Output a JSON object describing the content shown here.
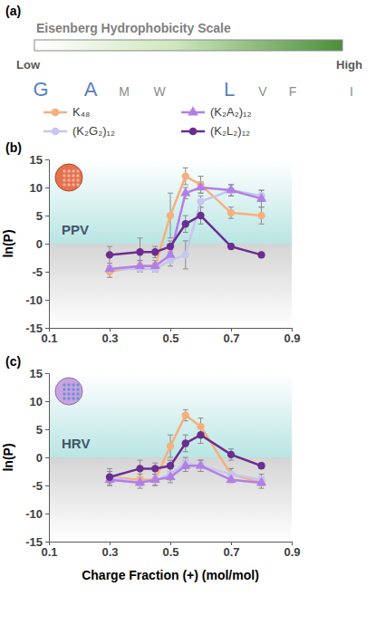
{
  "chart_data": [
    {
      "type": "scale",
      "panel": "(a)",
      "title": "Eisenberg Hydrophobicity Scale",
      "low_label": "Low",
      "high_label": "High",
      "letters": [
        "G",
        "A",
        "M",
        "W",
        "L",
        "V",
        "F",
        "I"
      ],
      "colors": [
        "#5b80bf",
        "#5b80bf",
        "#8c8c8c",
        "#8c8c8c",
        "#5b80bf",
        "#8c8c8c",
        "#8c8c8c",
        "#8c8c8c"
      ]
    },
    {
      "type": "line",
      "panel": "(b)",
      "annotation": "PPV",
      "ylabel": "ln(P)",
      "legend": "top",
      "x": [
        0.3,
        0.4,
        0.45,
        0.5,
        0.55,
        0.6,
        0.7,
        0.8
      ],
      "xlim": [
        0.1,
        0.9
      ],
      "xticks": [
        0.1,
        0.3,
        0.5,
        0.7,
        0.9
      ],
      "ylim": [
        -15,
        15
      ],
      "yticks": [
        -15,
        -10,
        -5,
        0,
        5,
        10,
        15
      ],
      "series": [
        {
          "name": "K₄₈",
          "color": "#f5b07c",
          "marker": "circle",
          "line_style": "solid",
          "values": [
            -5,
            -4,
            -4,
            5,
            12,
            10.5,
            5.5,
            5
          ],
          "errors": [
            1,
            1,
            1,
            4,
            1.5,
            1.5,
            1,
            1.5
          ]
        },
        {
          "name": "(K₂G₂)₁₂",
          "color": "#c6c6ee",
          "marker": "circle",
          "line_style": "solid",
          "values": [
            -4.5,
            -4.5,
            -4.5,
            -3,
            -2,
            7.5,
            9.5,
            8.5
          ],
          "errors": [
            0.5,
            0.5,
            0.5,
            1,
            2.5,
            1,
            1,
            1
          ]
        },
        {
          "name": "(K₂A₂)₁₂",
          "color": "#b27fe6",
          "marker": "triangle",
          "line_style": "solid",
          "values": [
            -4.5,
            -4,
            -4,
            -2,
            9,
            10,
            9.5,
            8
          ],
          "errors": [
            0.5,
            1,
            0.5,
            1,
            1,
            1,
            1,
            1.5
          ]
        },
        {
          "name": "(K₂L₂)₁₂",
          "color": "#6b2d90",
          "marker": "circle",
          "line_style": "solid",
          "values": [
            -2,
            -1.5,
            -1.5,
            -0.5,
            3.5,
            5,
            -0.5,
            -2
          ],
          "errors": [
            1.5,
            2.5,
            1,
            1,
            1.5,
            1.5,
            0.5,
            0.5
          ]
        }
      ]
    },
    {
      "type": "line",
      "panel": "(c)",
      "annotation": "HRV",
      "ylabel": "ln(P)",
      "xlabel": "Charge Fraction (+) (mol/mol)",
      "x": [
        0.3,
        0.4,
        0.45,
        0.5,
        0.55,
        0.6,
        0.7,
        0.8
      ],
      "xlim": [
        0.1,
        0.9
      ],
      "xticks": [
        0.1,
        0.3,
        0.5,
        0.7,
        0.9
      ],
      "ylim": [
        -15,
        15
      ],
      "yticks": [
        -15,
        -10,
        -5,
        0,
        5,
        10,
        15
      ],
      "series": [
        {
          "name": "K₄₈",
          "color": "#f5b07c",
          "marker": "circle",
          "line_style": "solid",
          "values": [
            -3.5,
            -4,
            -4,
            2,
            7.5,
            5.5,
            -3,
            -4.5
          ],
          "errors": [
            1.5,
            1,
            1,
            2,
            1,
            1.5,
            1,
            1
          ]
        },
        {
          "name": "(K₂G₂)₁₂",
          "color": "#c6c6ee",
          "marker": "circle",
          "line_style": "solid",
          "values": [
            -3.5,
            -4.5,
            -4,
            -3,
            -1,
            -1.5,
            -3,
            -4
          ],
          "errors": [
            1,
            1,
            1,
            1,
            1,
            1,
            1,
            1
          ]
        },
        {
          "name": "(K₂A₂)₁₂",
          "color": "#b27fe6",
          "marker": "triangle",
          "line_style": "solid",
          "values": [
            -4,
            -4.5,
            -4,
            -3.5,
            -1.5,
            -1.5,
            -4,
            -4.5
          ],
          "errors": [
            1,
            0.5,
            0.5,
            1,
            1,
            1,
            0.5,
            0.5
          ]
        },
        {
          "name": "(K₂L₂)₁₂",
          "color": "#6b2d90",
          "marker": "circle",
          "line_style": "solid",
          "values": [
            -3.5,
            -2,
            -2,
            -1.5,
            2.5,
            4,
            0.5,
            -1.5
          ],
          "errors": [
            1,
            1.5,
            1,
            1,
            1.5,
            1.5,
            1,
            0.5
          ]
        }
      ]
    }
  ]
}
